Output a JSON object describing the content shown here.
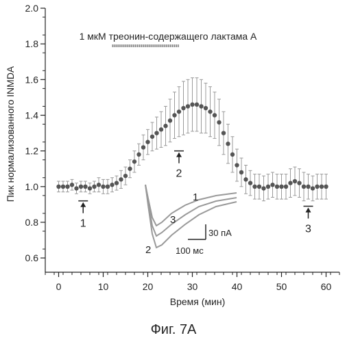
{
  "chart_data": {
    "type": "scatter",
    "title": "",
    "xlabel": "Время (мин)",
    "ylabel": "Пик нормализованного INMDA",
    "xlim": [
      -3,
      63
    ],
    "ylim": [
      0.52,
      2.0
    ],
    "xticks": [
      0,
      10,
      20,
      30,
      40,
      50,
      60
    ],
    "xtick_labels": [
      "0",
      "10",
      "20",
      "30",
      "40",
      "50",
      "60"
    ],
    "yticks": [
      0.6,
      0.8,
      1.0,
      1.2,
      1.4,
      1.6,
      1.8,
      2.0
    ],
    "ytick_labels": [
      "0.6",
      "0.8",
      "1.0",
      "1.2",
      "1.4",
      "1.6",
      "1.8",
      "2.0"
    ],
    "grid": false,
    "legend": "none",
    "drug_label": "1 мкМ треонин-содержащего лактама А",
    "drug_period": [
      12,
      27
    ],
    "series": [
      {
        "x": [
          0,
          1,
          2,
          3,
          4,
          5,
          6,
          7,
          8,
          9,
          10,
          11,
          12,
          13,
          14,
          15,
          16,
          17,
          18,
          19,
          20,
          21,
          22,
          23,
          24,
          25,
          26,
          27,
          28,
          29,
          30,
          31,
          32,
          33,
          34,
          35,
          36,
          37,
          38,
          39,
          40,
          41,
          42,
          43,
          44,
          45,
          46,
          47,
          48,
          49,
          50,
          51,
          52,
          53,
          54,
          55,
          56,
          57,
          58,
          59,
          60
        ],
        "y": [
          1.0,
          1.0,
          1.0,
          1.01,
          0.99,
          1.0,
          1.0,
          0.99,
          1.0,
          1.01,
          1.0,
          1.0,
          1.01,
          1.02,
          1.04,
          1.06,
          1.1,
          1.14,
          1.18,
          1.22,
          1.25,
          1.28,
          1.3,
          1.32,
          1.34,
          1.37,
          1.4,
          1.42,
          1.44,
          1.45,
          1.46,
          1.46,
          1.45,
          1.44,
          1.42,
          1.4,
          1.36,
          1.3,
          1.24,
          1.18,
          1.12,
          1.08,
          1.04,
          1.02,
          1.0,
          1.0,
          0.99,
          1.0,
          1.01,
          1.0,
          1.0,
          1.0,
          1.02,
          1.03,
          1.02,
          1.0,
          1.0,
          0.99,
          1.0,
          1.0,
          1.0
        ],
        "err": [
          0.03,
          0.03,
          0.03,
          0.03,
          0.03,
          0.03,
          0.03,
          0.03,
          0.03,
          0.04,
          0.04,
          0.04,
          0.04,
          0.04,
          0.05,
          0.05,
          0.05,
          0.06,
          0.06,
          0.07,
          0.07,
          0.08,
          0.09,
          0.1,
          0.11,
          0.12,
          0.13,
          0.14,
          0.15,
          0.15,
          0.15,
          0.15,
          0.15,
          0.14,
          0.14,
          0.13,
          0.13,
          0.12,
          0.11,
          0.1,
          0.09,
          0.08,
          0.08,
          0.07,
          0.07,
          0.07,
          0.07,
          0.07,
          0.07,
          0.07,
          0.07,
          0.07,
          0.08,
          0.08,
          0.08,
          0.08,
          0.07,
          0.07,
          0.07,
          0.07,
          0.07
        ]
      }
    ],
    "markers": [
      {
        "label": "1",
        "x": 5.5,
        "y": 0.92
      },
      {
        "label": "2",
        "x": 27,
        "y": 1.2
      },
      {
        "label": "3",
        "x": 56,
        "y": 0.89
      }
    ],
    "inset": {
      "trace_labels": [
        "1",
        "2",
        "3"
      ],
      "scale_y_label": "30 пА",
      "scale_x_label": "100 мс"
    }
  },
  "figure_label": "Фиг. 7А",
  "colors": {
    "axis": "#222222",
    "points": "#555555",
    "errorbars": "#9a9a9a"
  }
}
